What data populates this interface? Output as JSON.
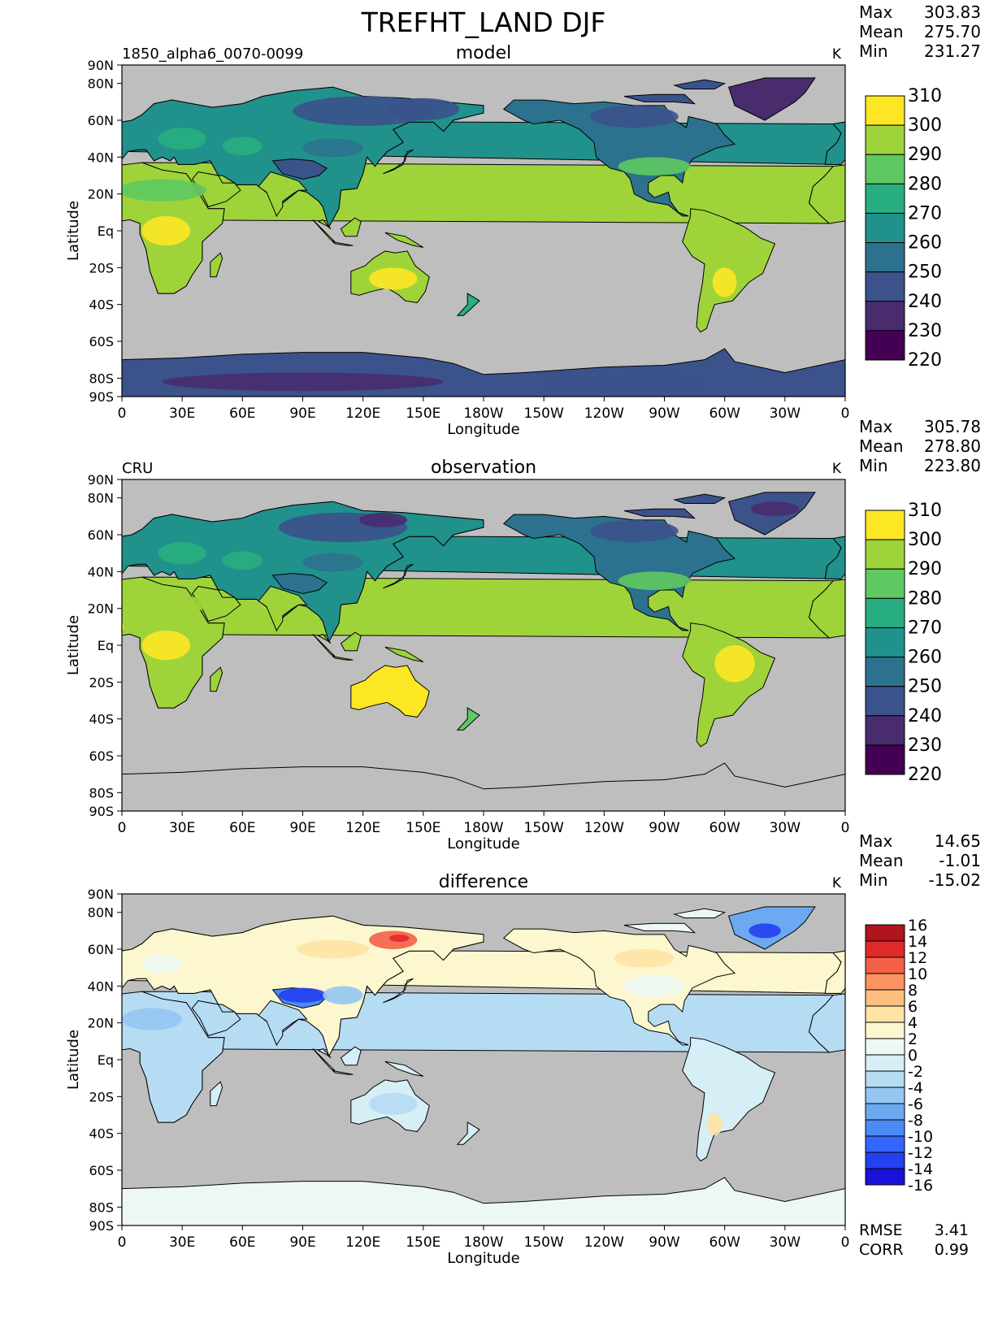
{
  "title": "TREFHT_LAND DJF",
  "colors": {
    "ocean": "#bebebe",
    "abs_scale": [
      "#440154",
      "#482c6e",
      "#3b528b",
      "#2c728e",
      "#21918c",
      "#28ae80",
      "#5ec962",
      "#9fd33a",
      "#fde725"
    ],
    "diff_scale": [
      "#1a12d8",
      "#2440f0",
      "#3366ff",
      "#4c8af5",
      "#6da9f2",
      "#94c6f2",
      "#b6dcf4",
      "#d6eef6",
      "#eef8f3",
      "#fdf7cf",
      "#fee3a4",
      "#fdbf7e",
      "#fb9460",
      "#f26146",
      "#e02a2a",
      "#b0141c"
    ]
  },
  "axes": {
    "lon_ticks": [
      "0",
      "30E",
      "60E",
      "90E",
      "120E",
      "150E",
      "180W",
      "150W",
      "120W",
      "90W",
      "60W",
      "30W",
      "0"
    ],
    "lat_ticks": [
      "90N",
      "80N",
      "60N",
      "40N",
      "20N",
      "Eq",
      "20S",
      "40S",
      "60S",
      "80S",
      "90S"
    ],
    "lat_values": [
      90,
      80,
      60,
      40,
      20,
      0,
      -20,
      -40,
      -60,
      -80,
      -90
    ],
    "xlabel": "Longitude",
    "ylabel": "Latitude"
  },
  "panels": [
    {
      "name": "model",
      "left_label": "1850_alpha6_0070-0099",
      "center_label": "model",
      "units": "K",
      "stats": [
        {
          "label": "Max",
          "value": "303.83"
        },
        {
          "label": "Mean",
          "value": "275.70"
        },
        {
          "label": "Min",
          "value": "231.27"
        }
      ],
      "colorbar": [
        "310",
        "300",
        "290",
        "280",
        "270",
        "260",
        "250",
        "240",
        "230",
        "220"
      ]
    },
    {
      "name": "observation",
      "left_label": "CRU",
      "center_label": "observation",
      "units": "K",
      "stats": [
        {
          "label": "Max",
          "value": "305.78"
        },
        {
          "label": "Mean",
          "value": "278.80"
        },
        {
          "label": "Min",
          "value": "223.80"
        }
      ],
      "colorbar": [
        "310",
        "300",
        "290",
        "280",
        "270",
        "260",
        "250",
        "240",
        "230",
        "220"
      ]
    },
    {
      "name": "difference",
      "left_label": "",
      "center_label": "difference",
      "units": "K",
      "stats": [
        {
          "label": "Max",
          "value": "14.65"
        },
        {
          "label": "Mean",
          "value": "-1.01"
        },
        {
          "label": "Min",
          "value": "-15.02"
        }
      ],
      "colorbar": [
        "16",
        "14",
        "12",
        "10",
        "8",
        "6",
        "4",
        "2",
        "0",
        "-2",
        "-4",
        "-6",
        "-8",
        "-10",
        "-12",
        "-14",
        "-16"
      ],
      "metrics": [
        {
          "label": "RMSE",
          "value": "3.41"
        },
        {
          "label": "CORR",
          "value": "0.99"
        }
      ]
    }
  ],
  "chart_data": [
    {
      "type": "heatmap",
      "title": "model",
      "variable": "TREFHT_LAND DJF",
      "units": "K",
      "levels": [
        220,
        230,
        240,
        250,
        260,
        270,
        280,
        290,
        300,
        310
      ],
      "regions": [
        {
          "region": "Antarctica",
          "value": 242
        },
        {
          "region": "Greenland",
          "value": 233
        },
        {
          "region": "Siberia",
          "value": 248
        },
        {
          "region": "Europe",
          "value": 272
        },
        {
          "region": "Canada",
          "value": 250
        },
        {
          "region": "United States",
          "value": 272
        },
        {
          "region": "Tibet",
          "value": 255
        },
        {
          "region": "North Africa",
          "value": 288
        },
        {
          "region": "Central Africa",
          "value": 295
        },
        {
          "region": "India",
          "value": 291
        },
        {
          "region": "Southeast Asia",
          "value": 293
        },
        {
          "region": "Australia",
          "value": 301
        },
        {
          "region": "South America",
          "value": 296
        }
      ],
      "max": 303.83,
      "mean": 275.7,
      "min": 231.27
    },
    {
      "type": "heatmap",
      "title": "observation",
      "variable": "TREFHT_LAND DJF",
      "units": "K",
      "levels": [
        220,
        230,
        240,
        250,
        260,
        270,
        280,
        290,
        300,
        310
      ],
      "regions": [
        {
          "region": "Greenland",
          "value": 238
        },
        {
          "region": "Siberia",
          "value": 236
        },
        {
          "region": "Europe",
          "value": 272
        },
        {
          "region": "Canada",
          "value": 248
        },
        {
          "region": "United States",
          "value": 274
        },
        {
          "region": "Tibet",
          "value": 260
        },
        {
          "region": "North Africa",
          "value": 288
        },
        {
          "region": "Central Africa",
          "value": 297
        },
        {
          "region": "India",
          "value": 293
        },
        {
          "region": "Southeast Asia",
          "value": 296
        },
        {
          "region": "Australia",
          "value": 302
        },
        {
          "region": "South America",
          "value": 297
        }
      ],
      "max": 305.78,
      "mean": 278.8,
      "min": 223.8
    },
    {
      "type": "heatmap",
      "title": "difference",
      "variable": "TREFHT_LAND DJF",
      "units": "K",
      "levels": [
        -16,
        -14,
        -12,
        -10,
        -8,
        -6,
        -4,
        -2,
        0,
        2,
        4,
        6,
        8,
        10,
        12,
        14,
        16
      ],
      "regions": [
        {
          "region": "Greenland",
          "value": -10
        },
        {
          "region": "Eastern Siberia",
          "value": 12
        },
        {
          "region": "Europe",
          "value": 1
        },
        {
          "region": "Canada",
          "value": 2
        },
        {
          "region": "United States",
          "value": -1
        },
        {
          "region": "Tibet",
          "value": -12
        },
        {
          "region": "North Africa",
          "value": -3
        },
        {
          "region": "Central Africa",
          "value": -2
        },
        {
          "region": "India",
          "value": -2
        },
        {
          "region": "Australia",
          "value": -2
        },
        {
          "region": "South America",
          "value": -2
        }
      ],
      "max": 14.65,
      "mean": -1.01,
      "min": -15.02,
      "rmse": 3.41,
      "corr": 0.99
    }
  ]
}
